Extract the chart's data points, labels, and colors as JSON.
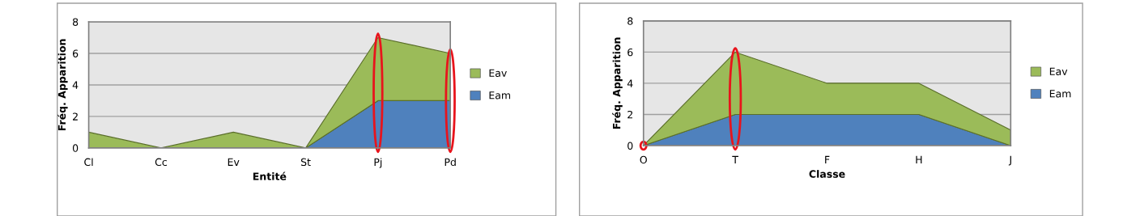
{
  "chart_data": [
    {
      "type": "area",
      "stacked": true,
      "xlabel": "Entité",
      "ylabel": "Fréq. Apparition",
      "categories": [
        "Cl",
        "Cc",
        "Ev",
        "St",
        "Pj",
        "Pd"
      ],
      "ylim": [
        0,
        8
      ],
      "yticks": [
        0,
        2,
        4,
        6,
        8
      ],
      "grid": "y",
      "legend": "right",
      "series": [
        {
          "name": "Eam",
          "color": "#4f81bd",
          "values": [
            0,
            0,
            0,
            0,
            3,
            3
          ]
        },
        {
          "name": "Eav",
          "color": "#9bbb59",
          "values": [
            1,
            0,
            1,
            0,
            4,
            3
          ]
        }
      ]
    },
    {
      "type": "area",
      "stacked": true,
      "xlabel": "Classe",
      "ylabel": "Fréq. Apparition",
      "categories": [
        "O",
        "T",
        "F",
        "H",
        "J"
      ],
      "ylim": [
        0,
        8
      ],
      "yticks": [
        0,
        2,
        4,
        6,
        8
      ],
      "grid": "y",
      "legend": "right",
      "series": [
        {
          "name": "Eam",
          "color": "#4f81bd",
          "values": [
            0,
            2,
            2,
            2,
            0
          ]
        },
        {
          "name": "Eav",
          "color": "#9bbb59",
          "values": [
            0,
            4,
            2,
            2,
            1
          ]
        }
      ]
    }
  ]
}
